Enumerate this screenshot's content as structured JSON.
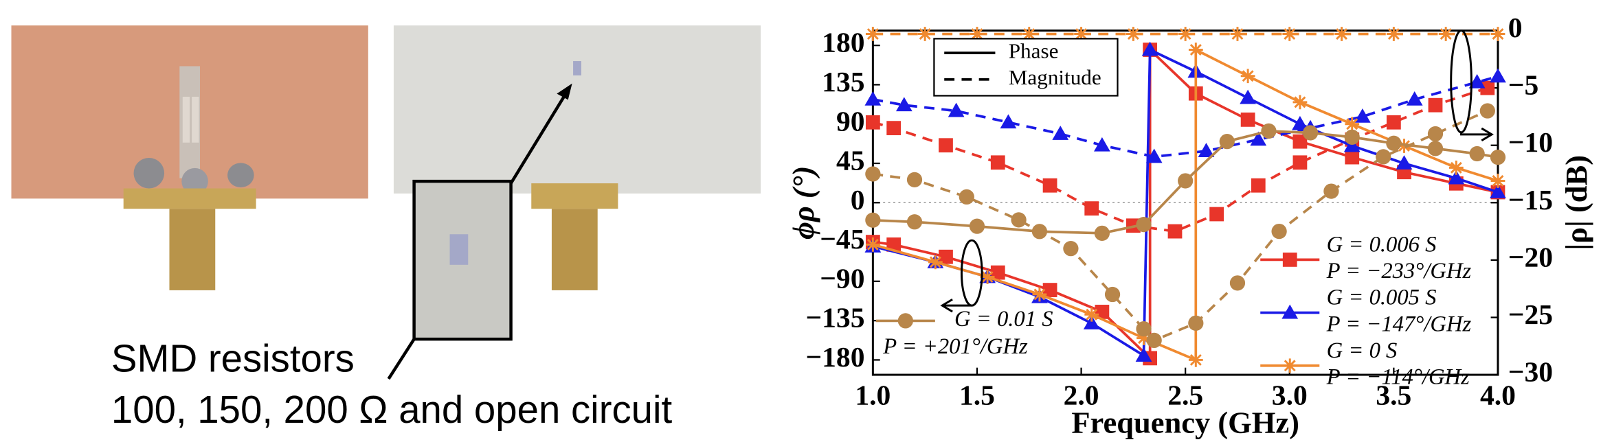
{
  "photo_caption": [
    "SMD resistors",
    "100, 150, 200 Ω and open circuit"
  ],
  "chart_data": {
    "type": "line",
    "x_label": "Frequency (GHz)",
    "y_label": "ϕρ (°)",
    "y2_label": "|ρ| (dB)",
    "xlim": [
      1,
      4
    ],
    "xticks": [
      {
        "value": 1,
        "label": "1.0"
      },
      {
        "value": 1.5,
        "label": "1.5"
      },
      {
        "value": 2,
        "label": "2.0"
      },
      {
        "value": 2.5,
        "label": "2.5"
      },
      {
        "value": 3,
        "label": "3.0"
      },
      {
        "value": 3.5,
        "label": "3.5"
      },
      {
        "value": 4,
        "label": "4.0"
      }
    ],
    "ylim": [
      -197,
      197
    ],
    "yticks": [
      {
        "value": -180,
        "label": "−180"
      },
      {
        "value": -135,
        "label": "−135"
      },
      {
        "value": -90,
        "label": "−90"
      },
      {
        "value": -45,
        "label": "−45"
      },
      0,
      45,
      90,
      135,
      180
    ],
    "y2lim": [
      -30,
      0
    ],
    "y2ticks": [
      {
        "value": -30,
        "label": "−30"
      },
      {
        "value": -25,
        "label": "−25"
      },
      {
        "value": -20,
        "label": "−20"
      },
      {
        "value": -15,
        "label": "−15"
      },
      {
        "value": -10,
        "label": "−10"
      },
      {
        "value": -5,
        "label": "−5"
      },
      0
    ],
    "line_styles": [
      {
        "name": "Phase",
        "dash": "solid"
      },
      {
        "name": "Magnitude",
        "dash": "dashed"
      }
    ],
    "series": [
      {
        "name": "G = 0.006 S",
        "note": "P = −233°/GHz",
        "color": "#e8352a",
        "marker": "square",
        "phase": {
          "x": [
            1.0,
            1.1,
            1.35,
            1.6,
            1.85,
            2.1,
            2.33,
            2.33,
            2.55,
            2.8,
            3.05,
            3.3,
            3.55,
            3.8,
            4.0
          ],
          "values": [
            -45,
            -48,
            -62,
            -80,
            -100,
            -125,
            -178,
            175,
            125,
            95,
            70,
            52,
            35,
            22,
            12
          ]
        },
        "magnitude": {
          "x": [
            1.0,
            1.1,
            1.35,
            1.6,
            1.85,
            2.05,
            2.25,
            2.45,
            2.65,
            2.85,
            3.05,
            3.3,
            3.5,
            3.7,
            3.95
          ],
          "values": [
            -8,
            -8.5,
            -10,
            -11.5,
            -13.5,
            -15.5,
            -17,
            -17.5,
            -16,
            -13.5,
            -11.5,
            -9.5,
            -8,
            -6.5,
            -5
          ]
        }
      },
      {
        "name": "G = 0.005 S",
        "note": "P = −147°/GHz",
        "color": "#1a1ae6",
        "marker": "triangle",
        "phase": {
          "x": [
            1.0,
            1.3,
            1.55,
            1.8,
            2.05,
            2.3,
            2.33,
            2.55,
            2.8,
            3.05,
            3.3,
            3.55,
            3.8,
            4.0
          ],
          "values": [
            -50,
            -68,
            -85,
            -108,
            -138,
            -175,
            175,
            150,
            120,
            90,
            65,
            45,
            28,
            12
          ]
        },
        "magnitude": {
          "x": [
            1.0,
            1.15,
            1.4,
            1.65,
            1.9,
            2.1,
            2.35,
            2.6,
            2.85,
            3.1,
            3.35,
            3.6,
            3.9,
            4.0
          ],
          "values": [
            -6,
            -6.5,
            -7,
            -8,
            -9,
            -10,
            -11,
            -10.5,
            -9.5,
            -8.5,
            -7.5,
            -6,
            -4.5,
            -4
          ]
        }
      },
      {
        "name": "G = 0 S",
        "note": "P = −114°/GHz",
        "color": "#f08a30",
        "marker": "star",
        "phase": {
          "x": [
            1.0,
            1.3,
            1.55,
            1.8,
            2.05,
            2.3,
            2.55,
            2.55,
            2.8,
            3.05,
            3.3,
            3.55,
            3.8,
            4.0
          ],
          "values": [
            -48,
            -68,
            -85,
            -105,
            -128,
            -155,
            -180,
            175,
            145,
            115,
            90,
            65,
            40,
            25
          ]
        },
        "magnitude": {
          "x": [
            1.0,
            1.25,
            1.5,
            1.75,
            2.0,
            2.25,
            2.5,
            2.75,
            3.0,
            3.25,
            3.5,
            3.75,
            4.0
          ],
          "values": [
            -0.3,
            -0.3,
            -0.3,
            -0.3,
            -0.3,
            -0.3,
            -0.3,
            -0.3,
            -0.3,
            -0.3,
            -0.3,
            -0.3,
            -0.3
          ]
        }
      },
      {
        "name": "G = 0.01 S",
        "note": "P = +201°/GHz",
        "color": "#b8864a",
        "marker": "circle",
        "phase": {
          "x": [
            1.0,
            1.2,
            1.5,
            1.8,
            2.1,
            2.3,
            2.5,
            2.7,
            2.9,
            3.1,
            3.3,
            3.5,
            3.7,
            3.9,
            4.0
          ],
          "values": [
            -20,
            -22,
            -27,
            -33,
            -35,
            -25,
            25,
            70,
            82,
            80,
            75,
            68,
            62,
            56,
            52
          ]
        },
        "magnitude": {
          "x": [
            1.0,
            1.2,
            1.45,
            1.7,
            1.95,
            2.15,
            2.3,
            2.35,
            2.55,
            2.75,
            2.95,
            3.2,
            3.45,
            3.7,
            3.95
          ],
          "values": [
            -12.5,
            -13,
            -14.5,
            -16.5,
            -19,
            -23,
            -26,
            -27,
            -25.5,
            -22,
            -17.5,
            -14,
            -11,
            -9,
            -7
          ]
        }
      }
    ]
  }
}
